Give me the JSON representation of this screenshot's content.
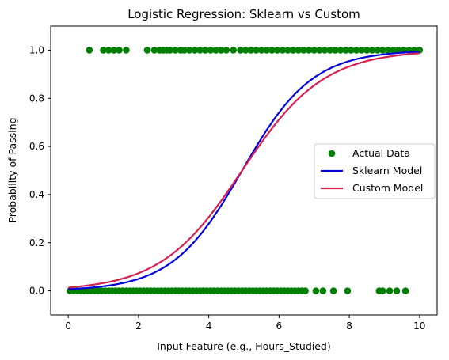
{
  "chart_data": {
    "type": "scatter",
    "title": "Logistic Regression: Sklearn vs Custom",
    "xlabel": "Input Feature (e.g., Hours_Studied)",
    "ylabel": "Probability of Passing",
    "xlim": [
      -0.5,
      10.5
    ],
    "ylim": [
      -0.1,
      1.1
    ],
    "xticks": [
      0,
      2,
      4,
      6,
      8,
      10
    ],
    "xtick_labels": [
      "0",
      "2",
      "4",
      "6",
      "8",
      "10"
    ],
    "yticks": [
      0.0,
      0.2,
      0.4,
      0.6,
      0.8,
      1.0
    ],
    "ytick_labels": [
      "0.0",
      "0.2",
      "0.4",
      "0.6",
      "0.8",
      "1.0"
    ],
    "grid": false,
    "legend_position": "center-right",
    "series": [
      {
        "name": "Actual Data",
        "kind": "scatter",
        "color": "#008000",
        "points": [
          [
            0.6,
            1
          ],
          [
            1.0,
            1
          ],
          [
            1.15,
            1
          ],
          [
            1.3,
            1
          ],
          [
            1.45,
            1
          ],
          [
            1.65,
            1
          ],
          [
            2.25,
            1
          ],
          [
            2.45,
            1
          ],
          [
            2.6,
            1
          ],
          [
            2.7,
            1
          ],
          [
            2.8,
            1
          ],
          [
            2.9,
            1
          ],
          [
            3.05,
            1
          ],
          [
            3.2,
            1
          ],
          [
            3.3,
            1
          ],
          [
            3.45,
            1
          ],
          [
            3.6,
            1
          ],
          [
            3.75,
            1
          ],
          [
            3.9,
            1
          ],
          [
            4.05,
            1
          ],
          [
            4.2,
            1
          ],
          [
            4.35,
            1
          ],
          [
            4.5,
            1
          ],
          [
            4.7,
            1
          ],
          [
            4.9,
            1
          ],
          [
            5.05,
            1
          ],
          [
            5.2,
            1
          ],
          [
            5.35,
            1
          ],
          [
            5.5,
            1
          ],
          [
            5.65,
            1
          ],
          [
            5.8,
            1
          ],
          [
            5.95,
            1
          ],
          [
            6.1,
            1
          ],
          [
            6.25,
            1
          ],
          [
            6.4,
            1
          ],
          [
            6.55,
            1
          ],
          [
            6.7,
            1
          ],
          [
            6.85,
            1
          ],
          [
            7.0,
            1
          ],
          [
            7.15,
            1
          ],
          [
            7.3,
            1
          ],
          [
            7.45,
            1
          ],
          [
            7.6,
            1
          ],
          [
            7.75,
            1
          ],
          [
            7.9,
            1
          ],
          [
            8.05,
            1
          ],
          [
            8.2,
            1
          ],
          [
            8.35,
            1
          ],
          [
            8.5,
            1
          ],
          [
            8.65,
            1
          ],
          [
            8.8,
            1
          ],
          [
            8.95,
            1
          ],
          [
            9.1,
            1
          ],
          [
            9.25,
            1
          ],
          [
            9.4,
            1
          ],
          [
            9.55,
            1
          ],
          [
            9.7,
            1
          ],
          [
            9.85,
            1
          ],
          [
            10.0,
            1
          ],
          [
            0.05,
            0
          ],
          [
            0.15,
            0
          ],
          [
            0.25,
            0
          ],
          [
            0.35,
            0
          ],
          [
            0.45,
            0
          ],
          [
            0.55,
            0
          ],
          [
            0.65,
            0
          ],
          [
            0.75,
            0
          ],
          [
            0.85,
            0
          ],
          [
            0.95,
            0
          ],
          [
            1.05,
            0
          ],
          [
            1.15,
            0
          ],
          [
            1.25,
            0
          ],
          [
            1.35,
            0
          ],
          [
            1.45,
            0
          ],
          [
            1.55,
            0
          ],
          [
            1.65,
            0
          ],
          [
            1.75,
            0
          ],
          [
            1.85,
            0
          ],
          [
            1.95,
            0
          ],
          [
            2.05,
            0
          ],
          [
            2.15,
            0
          ],
          [
            2.25,
            0
          ],
          [
            2.35,
            0
          ],
          [
            2.45,
            0
          ],
          [
            2.55,
            0
          ],
          [
            2.65,
            0
          ],
          [
            2.75,
            0
          ],
          [
            2.85,
            0
          ],
          [
            2.95,
            0
          ],
          [
            3.05,
            0
          ],
          [
            3.15,
            0
          ],
          [
            3.25,
            0
          ],
          [
            3.35,
            0
          ],
          [
            3.45,
            0
          ],
          [
            3.55,
            0
          ],
          [
            3.65,
            0
          ],
          [
            3.75,
            0
          ],
          [
            3.85,
            0
          ],
          [
            3.95,
            0
          ],
          [
            4.05,
            0
          ],
          [
            4.15,
            0
          ],
          [
            4.25,
            0
          ],
          [
            4.35,
            0
          ],
          [
            4.45,
            0
          ],
          [
            4.55,
            0
          ],
          [
            4.65,
            0
          ],
          [
            4.75,
            0
          ],
          [
            4.85,
            0
          ],
          [
            4.95,
            0
          ],
          [
            5.05,
            0
          ],
          [
            5.15,
            0
          ],
          [
            5.25,
            0
          ],
          [
            5.35,
            0
          ],
          [
            5.45,
            0
          ],
          [
            5.55,
            0
          ],
          [
            5.65,
            0
          ],
          [
            5.75,
            0
          ],
          [
            5.85,
            0
          ],
          [
            5.95,
            0
          ],
          [
            6.05,
            0
          ],
          [
            6.15,
            0
          ],
          [
            6.25,
            0
          ],
          [
            6.35,
            0
          ],
          [
            6.45,
            0
          ],
          [
            6.55,
            0
          ],
          [
            6.65,
            0
          ],
          [
            6.75,
            0
          ],
          [
            7.05,
            0
          ],
          [
            7.25,
            0
          ],
          [
            7.55,
            0
          ],
          [
            7.95,
            0
          ],
          [
            8.85,
            0
          ],
          [
            8.95,
            0
          ],
          [
            9.15,
            0
          ],
          [
            9.35,
            0
          ],
          [
            9.6,
            0
          ]
        ]
      },
      {
        "name": "Sklearn Model",
        "kind": "line",
        "color": "#0000dd",
        "x0": 4.95,
        "k": 1.0
      },
      {
        "name": "Custom Model",
        "kind": "line",
        "color": "#d62050",
        "x0": 4.95,
        "k": 0.86
      }
    ]
  }
}
